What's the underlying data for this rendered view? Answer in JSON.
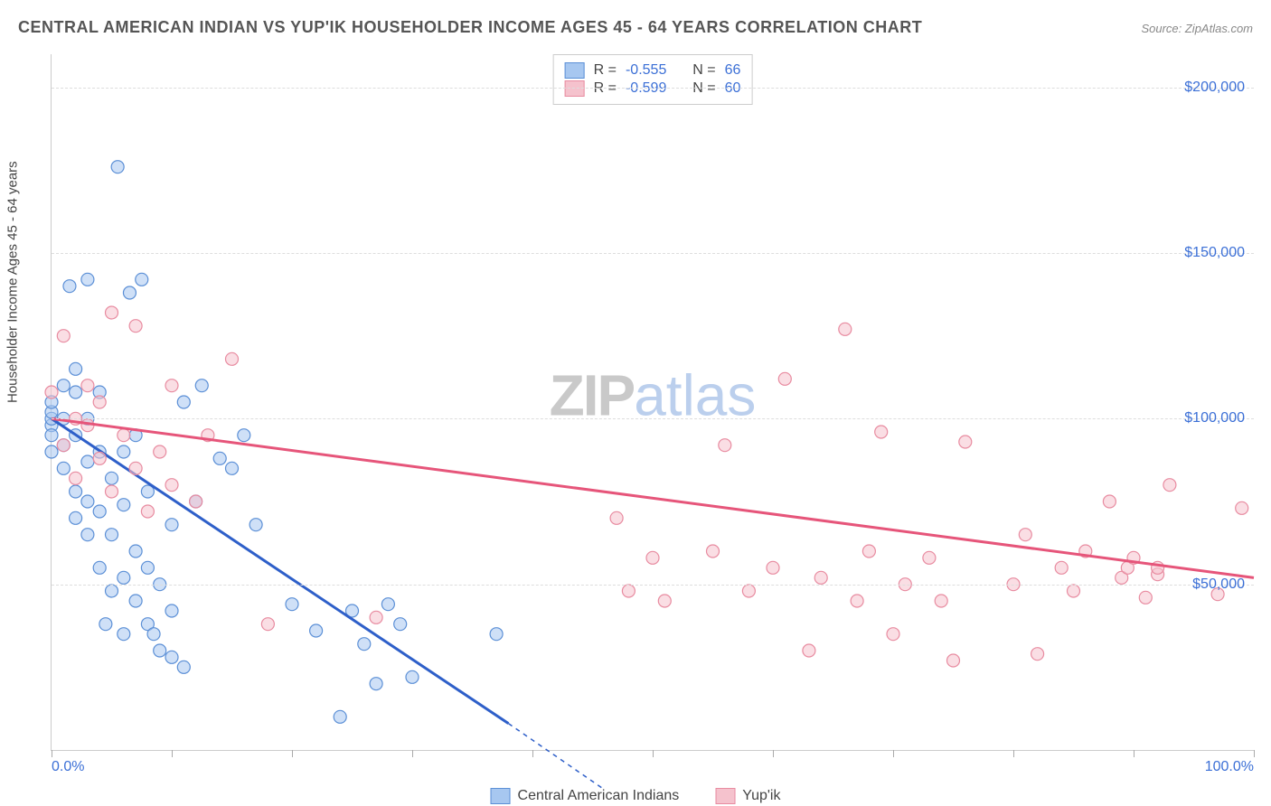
{
  "title": "CENTRAL AMERICAN INDIAN VS YUP'IK HOUSEHOLDER INCOME AGES 45 - 64 YEARS CORRELATION CHART",
  "source": "Source: ZipAtlas.com",
  "ylabel": "Householder Income Ages 45 - 64 years",
  "watermark_a": "ZIP",
  "watermark_b": "atlas",
  "chart": {
    "type": "scatter",
    "xlim": [
      0,
      100
    ],
    "ylim": [
      0,
      210000
    ],
    "xticks": [
      0,
      10,
      20,
      30,
      40,
      50,
      60,
      70,
      80,
      90,
      100
    ],
    "xtick_labels": {
      "0": "0.0%",
      "100": "100.0%"
    },
    "yticks": [
      50000,
      100000,
      150000,
      200000
    ],
    "ytick_labels": {
      "50000": "$50,000",
      "100000": "$100,000",
      "150000": "$150,000",
      "200000": "$200,000"
    },
    "background_color": "#ffffff",
    "grid_color": "#dddddd",
    "axis_color": "#cccccc",
    "tick_label_color": "#3b6fd6",
    "marker_radius": 7,
    "marker_opacity": 0.55,
    "trend_line_width": 3,
    "label_fontsize": 15
  },
  "series": [
    {
      "name": "Central American Indians",
      "color_fill": "#a7c7f0",
      "color_stroke": "#5b8fd6",
      "trend_color": "#2e5fc9",
      "R": "-0.555",
      "N": "66",
      "trend": {
        "x1": 0,
        "y1": 100000,
        "x2": 38,
        "y2": 8000,
        "dash_from": 38,
        "dash_to_x": 46,
        "dash_to_y": -12000
      },
      "points": [
        [
          0,
          98000
        ],
        [
          0,
          95000
        ],
        [
          0,
          100000
        ],
        [
          0,
          102000
        ],
        [
          0,
          90000
        ],
        [
          0,
          105000
        ],
        [
          1,
          92000
        ],
        [
          1,
          100000
        ],
        [
          1,
          85000
        ],
        [
          1,
          110000
        ],
        [
          1.5,
          140000
        ],
        [
          2,
          95000
        ],
        [
          2,
          78000
        ],
        [
          2,
          108000
        ],
        [
          2,
          70000
        ],
        [
          2,
          115000
        ],
        [
          3,
          87000
        ],
        [
          3,
          142000
        ],
        [
          3,
          65000
        ],
        [
          3,
          100000
        ],
        [
          3,
          75000
        ],
        [
          4,
          55000
        ],
        [
          4,
          90000
        ],
        [
          4,
          108000
        ],
        [
          4,
          72000
        ],
        [
          4.5,
          38000
        ],
        [
          5,
          48000
        ],
        [
          5,
          82000
        ],
        [
          5.5,
          176000
        ],
        [
          5,
          65000
        ],
        [
          6,
          52000
        ],
        [
          6,
          74000
        ],
        [
          6,
          35000
        ],
        [
          6,
          90000
        ],
        [
          6.5,
          138000
        ],
        [
          7,
          60000
        ],
        [
          7,
          45000
        ],
        [
          7,
          95000
        ],
        [
          7.5,
          142000
        ],
        [
          8,
          55000
        ],
        [
          8,
          38000
        ],
        [
          8,
          78000
        ],
        [
          8.5,
          35000
        ],
        [
          9,
          30000
        ],
        [
          9,
          50000
        ],
        [
          10,
          42000
        ],
        [
          10,
          68000
        ],
        [
          10,
          28000
        ],
        [
          11,
          105000
        ],
        [
          11,
          25000
        ],
        [
          12,
          75000
        ],
        [
          12.5,
          110000
        ],
        [
          14,
          88000
        ],
        [
          15,
          85000
        ],
        [
          16,
          95000
        ],
        [
          17,
          68000
        ],
        [
          20,
          44000
        ],
        [
          22,
          36000
        ],
        [
          24,
          10000
        ],
        [
          25,
          42000
        ],
        [
          26,
          32000
        ],
        [
          27,
          20000
        ],
        [
          28,
          44000
        ],
        [
          29,
          38000
        ],
        [
          30,
          22000
        ],
        [
          37,
          35000
        ]
      ]
    },
    {
      "name": "Yup'ik",
      "color_fill": "#f5c2cd",
      "color_stroke": "#e88ba0",
      "trend_color": "#e6557a",
      "R": "-0.599",
      "N": "60",
      "trend": {
        "x1": 0,
        "y1": 100000,
        "x2": 100,
        "y2": 52000
      },
      "points": [
        [
          0,
          108000
        ],
        [
          1,
          125000
        ],
        [
          1,
          92000
        ],
        [
          2,
          100000
        ],
        [
          2,
          82000
        ],
        [
          3,
          98000
        ],
        [
          3,
          110000
        ],
        [
          4,
          88000
        ],
        [
          4,
          105000
        ],
        [
          5,
          78000
        ],
        [
          5,
          132000
        ],
        [
          6,
          95000
        ],
        [
          7,
          85000
        ],
        [
          7,
          128000
        ],
        [
          8,
          72000
        ],
        [
          9,
          90000
        ],
        [
          10,
          80000
        ],
        [
          10,
          110000
        ],
        [
          12,
          75000
        ],
        [
          13,
          95000
        ],
        [
          15,
          118000
        ],
        [
          18,
          38000
        ],
        [
          27,
          40000
        ],
        [
          47,
          70000
        ],
        [
          48,
          48000
        ],
        [
          50,
          58000
        ],
        [
          51,
          45000
        ],
        [
          55,
          60000
        ],
        [
          56,
          92000
        ],
        [
          58,
          48000
        ],
        [
          60,
          55000
        ],
        [
          61,
          112000
        ],
        [
          63,
          30000
        ],
        [
          64,
          52000
        ],
        [
          66,
          127000
        ],
        [
          67,
          45000
        ],
        [
          68,
          60000
        ],
        [
          69,
          96000
        ],
        [
          70,
          35000
        ],
        [
          71,
          50000
        ],
        [
          73,
          58000
        ],
        [
          74,
          45000
        ],
        [
          75,
          27000
        ],
        [
          76,
          93000
        ],
        [
          80,
          50000
        ],
        [
          81,
          65000
        ],
        [
          82,
          29000
        ],
        [
          84,
          55000
        ],
        [
          85,
          48000
        ],
        [
          86,
          60000
        ],
        [
          88,
          75000
        ],
        [
          89,
          52000
        ],
        [
          89.5,
          55000
        ],
        [
          90,
          58000
        ],
        [
          91,
          46000
        ],
        [
          92,
          53000
        ],
        [
          92,
          55000
        ],
        [
          93,
          80000
        ],
        [
          97,
          47000
        ],
        [
          99,
          73000
        ]
      ]
    }
  ],
  "legend": {
    "label_R": "R =",
    "label_N": "N ="
  }
}
